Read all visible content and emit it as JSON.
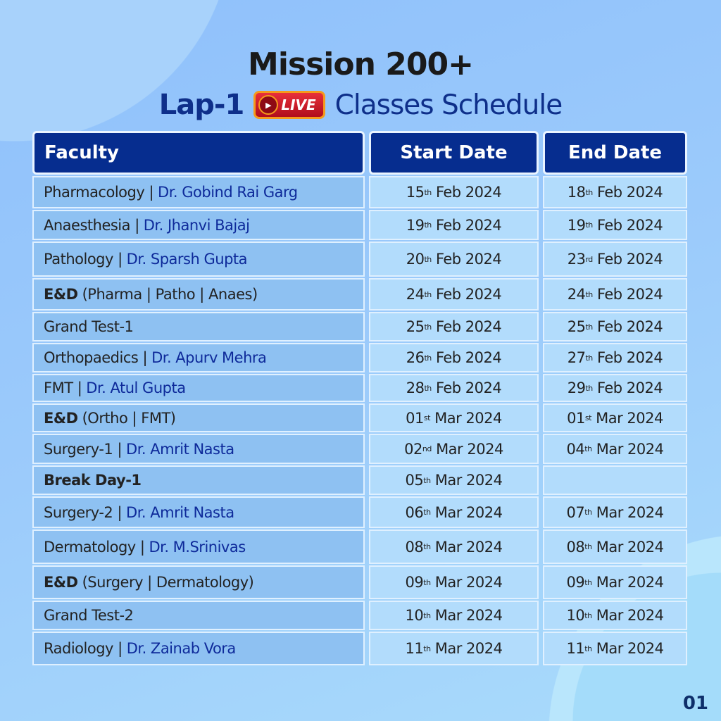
{
  "title": "Mission 200+",
  "subtitle": {
    "lap": "Lap-1",
    "badge": "LIVE",
    "text": "Classes Schedule"
  },
  "colors": {
    "header_bg": "#062d8f",
    "doctor_text": "#0e2a9a",
    "badge": "#d71f2b"
  },
  "headers": {
    "faculty": "Faculty",
    "start": "Start Date",
    "end": "End Date"
  },
  "rows": [
    {
      "bold": "",
      "subject": "Pharmacology |",
      "doctor": "Dr. Gobind Rai Garg",
      "start": {
        "d": "15",
        "s": "th",
        "r": "Feb 2024"
      },
      "end": {
        "d": "18",
        "s": "th",
        "r": "Feb 2024"
      }
    },
    {
      "bold": "",
      "subject": "Anaesthesia |",
      "doctor": "Dr. Jhanvi Bajaj",
      "start": {
        "d": "19",
        "s": "th",
        "r": "Feb 2024"
      },
      "end": {
        "d": "19",
        "s": "th",
        "r": "Feb 2024"
      }
    },
    {
      "bold": "",
      "subject": "Pathology |",
      "doctor": "Dr. Sparsh Gupta",
      "start": {
        "d": "20",
        "s": "th",
        "r": "Feb 2024"
      },
      "end": {
        "d": "23",
        "s": "rd",
        "r": "Feb 2024"
      }
    },
    {
      "bold": "E&D",
      "subject": "(Pharma | Patho | Anaes)",
      "doctor": "",
      "start": {
        "d": "24",
        "s": "th",
        "r": "Feb 2024"
      },
      "end": {
        "d": "24",
        "s": "th",
        "r": "Feb 2024"
      }
    },
    {
      "bold": "",
      "subject": "Grand Test-1",
      "doctor": "",
      "start": {
        "d": "25",
        "s": "th",
        "r": "Feb 2024"
      },
      "end": {
        "d": "25",
        "s": "th",
        "r": "Feb 2024"
      }
    },
    {
      "bold": "",
      "subject": "Orthopaedics |",
      "doctor": "Dr. Apurv Mehra",
      "start": {
        "d": "26",
        "s": "th",
        "r": "Feb 2024"
      },
      "end": {
        "d": "27",
        "s": "th",
        "r": "Feb 2024"
      }
    },
    {
      "bold": "",
      "subject": "FMT |",
      "doctor": "Dr. Atul Gupta",
      "start": {
        "d": "28",
        "s": "th",
        "r": "Feb 2024"
      },
      "end": {
        "d": "29",
        "s": "th",
        "r": "Feb 2024"
      }
    },
    {
      "bold": "E&D",
      "subject": "(Ortho | FMT)",
      "doctor": "",
      "start": {
        "d": "01",
        "s": "st",
        "r": "Mar 2024"
      },
      "end": {
        "d": "01",
        "s": "st",
        "r": "Mar 2024"
      }
    },
    {
      "bold": "",
      "subject": "Surgery-1 |",
      "doctor": "Dr. Amrit Nasta",
      "start": {
        "d": "02",
        "s": "nd",
        "r": "Mar 2024"
      },
      "end": {
        "d": "04",
        "s": "th",
        "r": "Mar 2024"
      }
    },
    {
      "bold": "Break Day-1",
      "subject": "",
      "doctor": "",
      "start": {
        "d": "05",
        "s": "th",
        "r": "Mar 2024"
      },
      "end": null
    },
    {
      "bold": "",
      "subject": "Surgery-2 |",
      "doctor": "Dr. Amrit Nasta",
      "start": {
        "d": "06",
        "s": "th",
        "r": "Mar 2024"
      },
      "end": {
        "d": "07",
        "s": "th",
        "r": "Mar 2024"
      }
    },
    {
      "bold": "",
      "subject": "Dermatology |",
      "doctor": "Dr. M.Srinivas",
      "start": {
        "d": "08",
        "s": "th",
        "r": "Mar 2024"
      },
      "end": {
        "d": "08",
        "s": "th",
        "r": "Mar 2024"
      }
    },
    {
      "bold": "E&D",
      "subject": "(Surgery | Dermatology)",
      "doctor": "",
      "start": {
        "d": "09",
        "s": "th",
        "r": "Mar 2024"
      },
      "end": {
        "d": "09",
        "s": "th",
        "r": "Mar 2024"
      }
    },
    {
      "bold": "",
      "subject": "Grand Test-2",
      "doctor": "",
      "start": {
        "d": "10",
        "s": "th",
        "r": "Mar 2024"
      },
      "end": {
        "d": "10",
        "s": "th",
        "r": "Mar 2024"
      }
    },
    {
      "bold": "",
      "subject": "Radiology |",
      "doctor": "Dr. Zainab Vora",
      "start": {
        "d": "11",
        "s": "th",
        "r": "Mar 2024"
      },
      "end": {
        "d": "11",
        "s": "th",
        "r": "Mar 2024"
      }
    }
  ],
  "page_number": "01"
}
